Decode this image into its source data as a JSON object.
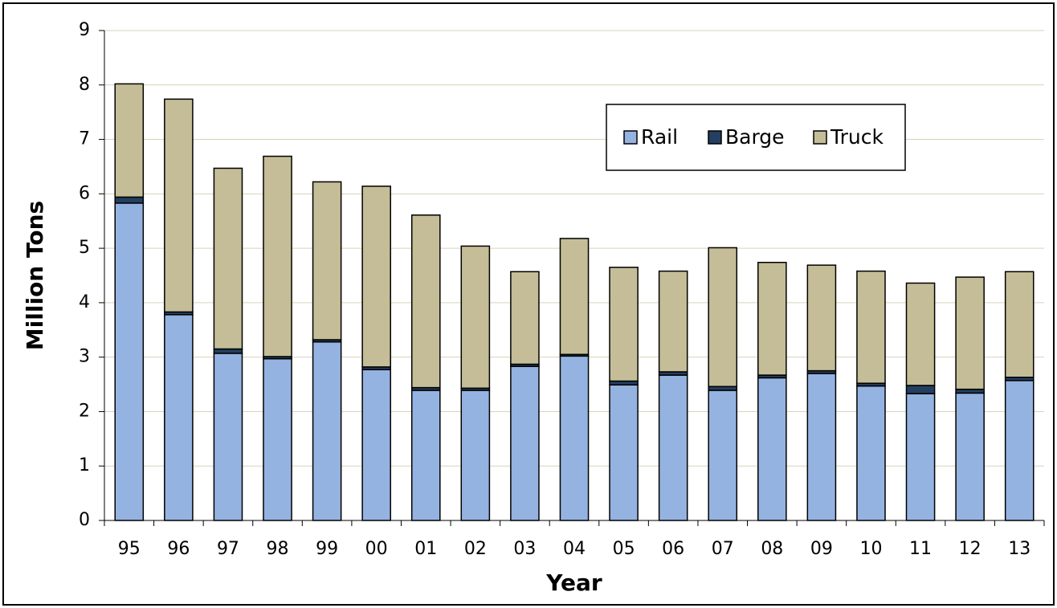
{
  "chart_data": {
    "type": "stacked_bar",
    "categories": [
      "95",
      "96",
      "97",
      "98",
      "99",
      "00",
      "01",
      "02",
      "03",
      "04",
      "05",
      "06",
      "07",
      "08",
      "09",
      "10",
      "11",
      "12",
      "13"
    ],
    "series": [
      {
        "name": "Rail",
        "color": "#95b3e0",
        "values": [
          5.83,
          3.78,
          3.07,
          2.97,
          3.28,
          2.77,
          2.39,
          2.39,
          2.83,
          3.02,
          2.49,
          2.67,
          2.39,
          2.62,
          2.7,
          2.47,
          2.33,
          2.34,
          2.57
        ]
      },
      {
        "name": "Barge",
        "color": "#243f60",
        "values": [
          0.11,
          0.05,
          0.08,
          0.04,
          0.04,
          0.05,
          0.05,
          0.04,
          0.04,
          0.03,
          0.07,
          0.06,
          0.07,
          0.05,
          0.05,
          0.05,
          0.15,
          0.07,
          0.06
        ]
      },
      {
        "name": "Truck",
        "color": "#c4bd97",
        "values": [
          2.08,
          3.91,
          3.32,
          3.68,
          2.9,
          3.32,
          3.17,
          2.61,
          1.7,
          2.13,
          2.09,
          1.85,
          2.55,
          2.07,
          1.94,
          2.06,
          1.88,
          2.06,
          1.94
        ]
      }
    ],
    "xlabel": "Year",
    "ylabel": "Million Tons",
    "ylim": [
      0,
      9
    ],
    "yticks": [
      0,
      1,
      2,
      3,
      4,
      5,
      6,
      7,
      8,
      9
    ],
    "grid": true,
    "legend_position": "top-right"
  }
}
